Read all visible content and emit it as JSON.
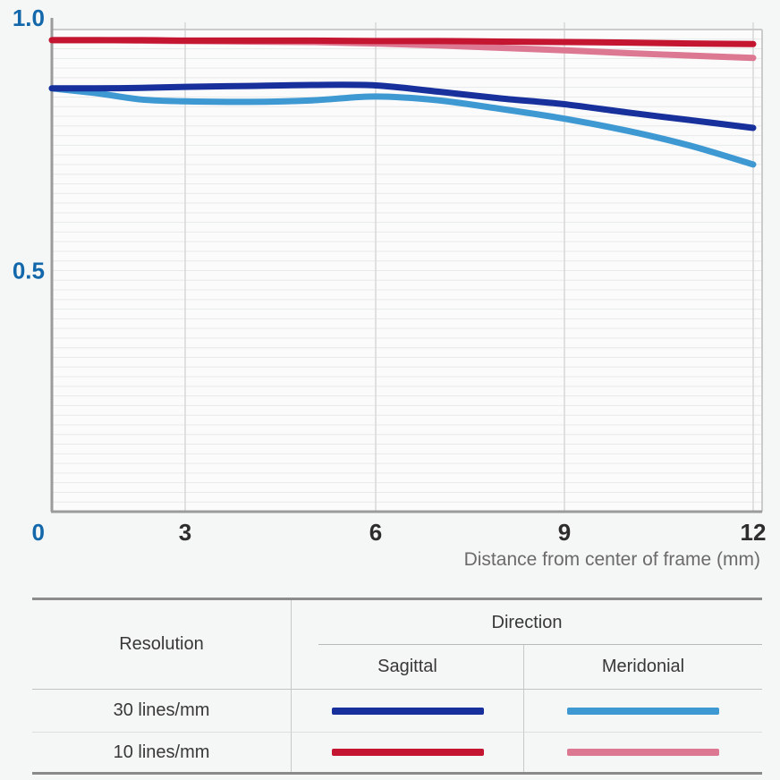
{
  "chart_data": {
    "type": "line",
    "title": "",
    "xlabel": "Distance from center of frame (mm)",
    "ylabel": "",
    "xlim": [
      0,
      12
    ],
    "ylim": [
      0,
      1.0
    ],
    "grid": {
      "horizontal_step": 0.02,
      "vertical_at": [
        3,
        6,
        9,
        12
      ]
    },
    "legend_position": "table-below",
    "x": [
      0,
      1,
      2,
      3,
      4,
      5,
      6,
      7,
      8,
      9,
      10,
      11,
      12
    ],
    "x_tick_labels": [
      {
        "value": 3,
        "label": "3"
      },
      {
        "value": 6,
        "label": "6"
      },
      {
        "value": 9,
        "label": "9"
      },
      {
        "value": 12,
        "label": "12"
      }
    ],
    "origin_label": "0",
    "y_tick_labels": [
      {
        "value": 1.0,
        "label": "1.0"
      },
      {
        "value": 0.5,
        "label": "0.5"
      }
    ],
    "series": [
      {
        "id": "10-meridional",
        "name": "10 lines/mm Meridonial",
        "color": "#dd7892",
        "values": [
          0.978,
          0.978,
          0.977,
          0.976,
          0.975,
          0.974,
          0.971,
          0.967,
          0.962,
          0.957,
          0.951,
          0.946,
          0.941
        ]
      },
      {
        "id": "30-meridional",
        "name": "30 lines/mm Meridonial",
        "color": "#3e98d2",
        "values": [
          0.878,
          0.868,
          0.855,
          0.851,
          0.85,
          0.853,
          0.861,
          0.853,
          0.835,
          0.815,
          0.79,
          0.759,
          0.72
        ]
      },
      {
        "id": "10-sagittal",
        "name": "10 lines/mm Sagittal",
        "color": "#c41531",
        "values": [
          0.978,
          0.978,
          0.978,
          0.977,
          0.977,
          0.977,
          0.976,
          0.976,
          0.975,
          0.974,
          0.973,
          0.971,
          0.97
        ]
      },
      {
        "id": "30-sagittal",
        "name": "30 lines/mm Sagittal",
        "color": "#17309c",
        "values": [
          0.878,
          0.878,
          0.879,
          0.881,
          0.883,
          0.885,
          0.884,
          0.871,
          0.857,
          0.845,
          0.828,
          0.812,
          0.796
        ]
      }
    ]
  },
  "axis_colors": {
    "y_label": "#1268ab",
    "x_label": "#2d2d2d",
    "axis_title": "#6b6b6b"
  },
  "legend_table": {
    "headers": {
      "resolution": "Resolution",
      "direction": "Direction",
      "sagittal": "Sagittal",
      "meridional": "Meridonial"
    },
    "rows": [
      {
        "resolution": "30 lines/mm",
        "sagittal_color": "#17309c",
        "meridional_color": "#3e98d2"
      },
      {
        "resolution": "10 lines/mm",
        "sagittal_color": "#c41531",
        "meridional_color": "#dd7892"
      }
    ]
  }
}
